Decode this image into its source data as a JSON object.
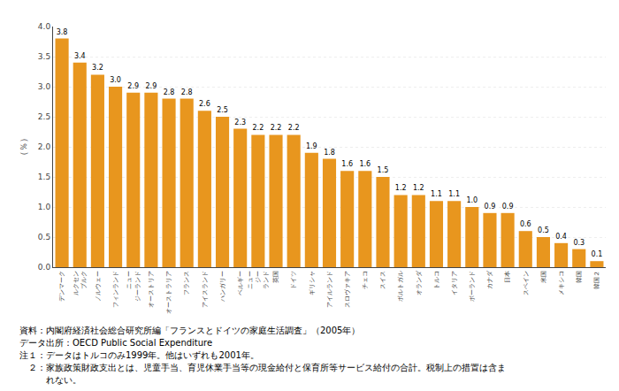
{
  "chart_data": {
    "type": "bar",
    "ylabel": "（％）",
    "categories": [
      "デンマーク",
      "ルクセン\nブルク",
      "ノルウェー",
      "フィンランド",
      "ニュー\nジーランド",
      "オーストリア",
      "オーストラリア",
      "フランス",
      "アイスランド",
      "ハンガリー",
      "ベルギー",
      "ニュー\nジー\nランド",
      "英国",
      "ドイツ",
      "ギリシャ",
      "アイルランド",
      "スロヴァキア",
      "チェコ",
      "スイス",
      "ポルトガル",
      "オランダ",
      "トルコ",
      "イタリア",
      "ポーランド",
      "カナダ",
      "日本",
      "スペイン",
      "米国",
      "メキシコ",
      "韓国",
      "韓国２"
    ],
    "values": [
      3.8,
      3.4,
      3.2,
      3.0,
      2.9,
      2.9,
      2.8,
      2.8,
      2.6,
      2.5,
      2.3,
      2.2,
      2.2,
      2.2,
      1.9,
      1.8,
      1.6,
      1.6,
      1.5,
      1.2,
      1.2,
      1.1,
      1.1,
      1.0,
      0.9,
      0.9,
      0.6,
      0.5,
      0.4,
      0.3,
      0.1
    ],
    "value_labels": [
      "3.8",
      "3.4",
      "3.2",
      "3.0",
      "2.9",
      "2.9",
      "2.8",
      "2.8",
      "2.6",
      "2.5",
      "2.3",
      "2.2",
      "2.2",
      "2.2",
      "1.9",
      "1.8",
      "1.6",
      "1.6",
      "1.5",
      "1.2",
      "1.2",
      "1.1",
      "1.1",
      "1.0",
      "0.9",
      "0.9",
      "0.6",
      "0.5",
      "0.4",
      "0.3",
      "0.1"
    ],
    "data_labels": true,
    "color": "#E8961E",
    "ylim": [
      0.0,
      4.0
    ],
    "yticks": [
      {
        "value": 0.0,
        "label": "0.0"
      },
      {
        "value": 0.5,
        "label": "0.5"
      },
      {
        "value": 1.0,
        "label": "1.0"
      },
      {
        "value": 1.5,
        "label": "1.5"
      },
      {
        "value": 2.0,
        "label": "2.0"
      },
      {
        "value": 2.5,
        "label": "2.5"
      },
      {
        "value": 3.0,
        "label": "3.0"
      },
      {
        "value": 3.5,
        "label": "3.5"
      },
      {
        "value": 4.0,
        "label": "4.0"
      }
    ],
    "grid": true,
    "annotations": [
      "資料：内閣府経済社会総合研究所編「フランスとドイツの家庭生活調査」（2005年）",
      "データ出所：OECD Public Social Expenditure",
      "注１：データはトルコのみ1999年。他はいずれも2001年。",
      "　２：家族政策財政支出とは、児童手当、育児休業手当等の現金給付と保育所等サービス給付の合計。税制上の措置は含ま",
      "　　　れない。"
    ]
  }
}
